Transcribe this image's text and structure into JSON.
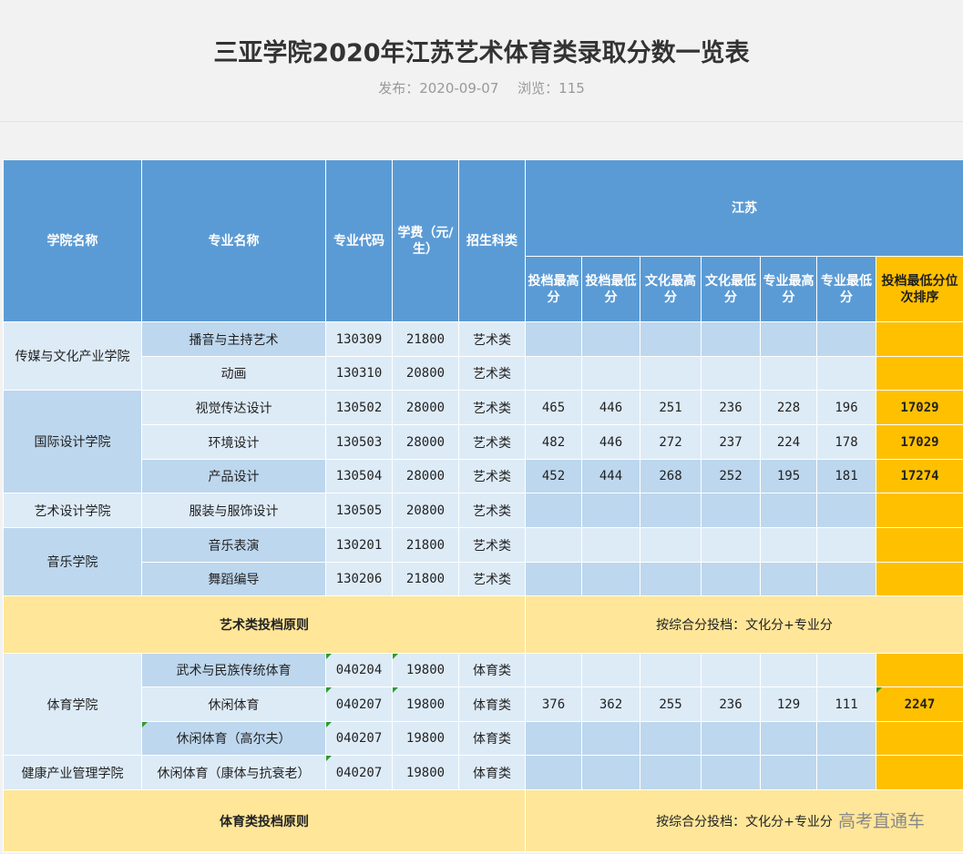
{
  "article": {
    "title": "三亚学院2020年江苏艺术体育类录取分数一览表",
    "published": "发布：2020-09-07",
    "views": "浏览：115"
  },
  "table": {
    "headers": {
      "college": "学院名称",
      "major": "专业名称",
      "code": "专业代码",
      "fee": "学费（元/生）",
      "category": "招生科类",
      "province": "江苏",
      "tou_max": "投档最高分",
      "tou_min": "投档最低分",
      "wen_max": "文化最高分",
      "wen_min": "文化最低分",
      "zhuan_max": "专业最高分",
      "zhuan_min": "专业最低分",
      "rank": "投档最低分位次排序"
    },
    "colleges": {
      "c1": "传媒与文化产业学院",
      "c2": "国际设计学院",
      "c3": "艺术设计学院",
      "c4": "音乐学院",
      "c5": "体育学院",
      "c6": "健康产业管理学院"
    },
    "rows": [
      {
        "major": "播音与主持艺术",
        "code": "130309",
        "fee": "21800",
        "category": "艺术类",
        "tmax": "",
        "tmin": "",
        "wmax": "",
        "wmin": "",
        "zmax": "",
        "zmin": "",
        "rank": ""
      },
      {
        "major": "动画",
        "code": "130310",
        "fee": "20800",
        "category": "艺术类",
        "tmax": "",
        "tmin": "",
        "wmax": "",
        "wmin": "",
        "zmax": "",
        "zmin": "",
        "rank": ""
      },
      {
        "major": "视觉传达设计",
        "code": "130502",
        "fee": "28000",
        "category": "艺术类",
        "tmax": "465",
        "tmin": "446",
        "wmax": "251",
        "wmin": "236",
        "zmax": "228",
        "zmin": "196",
        "rank": "17029"
      },
      {
        "major": "环境设计",
        "code": "130503",
        "fee": "28000",
        "category": "艺术类",
        "tmax": "482",
        "tmin": "446",
        "wmax": "272",
        "wmin": "237",
        "zmax": "224",
        "zmin": "178",
        "rank": "17029"
      },
      {
        "major": "产品设计",
        "code": "130504",
        "fee": "28000",
        "category": "艺术类",
        "tmax": "452",
        "tmin": "444",
        "wmax": "268",
        "wmin": "252",
        "zmax": "195",
        "zmin": "181",
        "rank": "17274"
      },
      {
        "major": "服装与服饰设计",
        "code": "130505",
        "fee": "20800",
        "category": "艺术类",
        "tmax": "",
        "tmin": "",
        "wmax": "",
        "wmin": "",
        "zmax": "",
        "zmin": "",
        "rank": ""
      },
      {
        "major": "音乐表演",
        "code": "130201",
        "fee": "21800",
        "category": "艺术类",
        "tmax": "",
        "tmin": "",
        "wmax": "",
        "wmin": "",
        "zmax": "",
        "zmin": "",
        "rank": ""
      },
      {
        "major": "舞蹈编导",
        "code": "130206",
        "fee": "21800",
        "category": "艺术类",
        "tmax": "",
        "tmin": "",
        "wmax": "",
        "wmin": "",
        "zmax": "",
        "zmin": "",
        "rank": ""
      },
      {
        "major": "武术与民族传统体育",
        "code": "040204",
        "fee": "19800",
        "category": "体育类",
        "tmax": "",
        "tmin": "",
        "wmax": "",
        "wmin": "",
        "zmax": "",
        "zmin": "",
        "rank": ""
      },
      {
        "major": "休闲体育",
        "code": "040207",
        "fee": "19800",
        "category": "体育类",
        "tmax": "376",
        "tmin": "362",
        "wmax": "255",
        "wmin": "236",
        "zmax": "129",
        "zmin": "111",
        "rank": "2247"
      },
      {
        "major": "休闲体育（高尔夫）",
        "code": "040207",
        "fee": "19800",
        "category": "体育类",
        "tmax": "",
        "tmin": "",
        "wmax": "",
        "wmin": "",
        "zmax": "",
        "zmin": "",
        "rank": ""
      },
      {
        "major": "休闲体育（康体与抗衰老）",
        "code": "040207",
        "fee": "19800",
        "category": "体育类",
        "tmax": "",
        "tmin": "",
        "wmax": "",
        "wmin": "",
        "zmax": "",
        "zmin": "",
        "rank": ""
      }
    ],
    "art_rule": {
      "label": "艺术类投档原则",
      "text": "按综合分投档：文化分+专业分"
    },
    "sport_rule": {
      "label": "体育类投档原则",
      "text": "按综合分投档：文化分+专业分"
    }
  },
  "watermark": "高考直通车",
  "colors": {
    "header_blue": "#5b9bd5",
    "dark_row": "#bdd7ee",
    "light_row": "#ddebf7",
    "gold": "#ffc000",
    "light_gold": "#ffe699"
  }
}
